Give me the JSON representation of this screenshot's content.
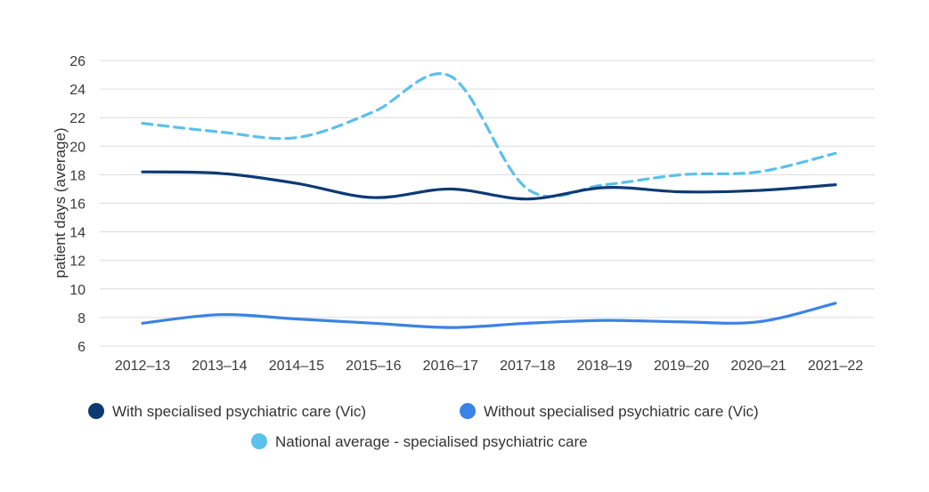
{
  "chart_data": {
    "type": "line",
    "title": "",
    "xlabel": "",
    "ylabel": "patient days (average)",
    "ylim": [
      6,
      26
    ],
    "yticks": [
      "6",
      "8",
      "10",
      "12",
      "14",
      "16",
      "18",
      "20",
      "22",
      "24",
      "26"
    ],
    "categories": [
      "2012–13",
      "2013–14",
      "2014–15",
      "2015–16",
      "2016–17",
      "2017–18",
      "2018–19",
      "2019–20",
      "2020–21",
      "2021–22"
    ],
    "grid": true,
    "legend_position": "bottom",
    "series": [
      {
        "name": "With specialised psychiatric care (Vic)",
        "color": "#0d3a73",
        "style": "solid",
        "values": [
          18.2,
          18.1,
          17.4,
          16.4,
          17.0,
          16.3,
          17.1,
          16.8,
          16.9,
          17.3
        ]
      },
      {
        "name": "Without specialised psychiatric care (Vic)",
        "color": "#3b82e6",
        "style": "solid",
        "values": [
          7.6,
          8.2,
          7.9,
          7.6,
          7.3,
          7.6,
          7.8,
          7.7,
          7.7,
          9.0
        ]
      },
      {
        "name": "National average - specialised psychiatric care",
        "color": "#5bc0eb",
        "style": "dashed",
        "values": [
          21.6,
          21.0,
          20.6,
          22.4,
          24.9,
          17.0,
          17.3,
          18.0,
          18.2,
          19.5
        ]
      }
    ]
  }
}
